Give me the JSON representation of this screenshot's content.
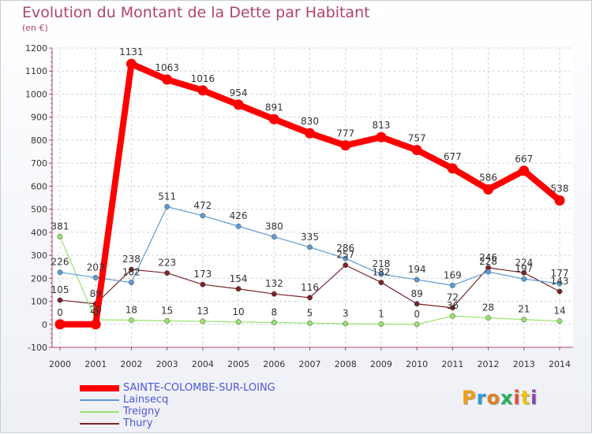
{
  "chart_data": {
    "type": "line",
    "title": "Evolution du Montant de la Dette par Habitant",
    "ylabel": "(en €)",
    "x": [
      "2000",
      "2001",
      "2002",
      "2003",
      "2004",
      "2005",
      "2006",
      "2007",
      "2008",
      "2009",
      "2010",
      "2011",
      "2012",
      "2013",
      "2014"
    ],
    "ylim": [
      -100,
      1200
    ],
    "yticks": [
      "-100",
      "0",
      "100",
      "200",
      "300",
      "400",
      "500",
      "600",
      "700",
      "800",
      "900",
      "1000",
      "1100",
      "1200"
    ],
    "grid": true,
    "legend_position": "bottom-left",
    "series": [
      {
        "name": "SAINTE-COLOMBE-SUR-LOING",
        "color": "#ff0000",
        "values": [
          0,
          0,
          1131,
          1063,
          1016,
          954,
          891,
          830,
          777,
          813,
          757,
          677,
          586,
          667,
          538
        ]
      },
      {
        "name": "Lainsecq",
        "color": "#5b9bd5",
        "values": [
          226,
          203,
          182,
          511,
          472,
          426,
          380,
          335,
          286,
          218,
          194,
          169,
          228,
          197,
          177
        ]
      },
      {
        "name": "Treigny",
        "color": "#99e36b",
        "values": [
          381,
          20,
          18,
          15,
          13,
          10,
          8,
          5,
          3,
          1,
          0,
          36,
          28,
          21,
          14
        ]
      },
      {
        "name": "Thury",
        "color": "#7a2328",
        "values": [
          105,
          89,
          238,
          223,
          173,
          154,
          132,
          116,
          257,
          182,
          89,
          72,
          246,
          224,
          143
        ]
      }
    ]
  },
  "logo": {
    "text": "Proxiti"
  }
}
